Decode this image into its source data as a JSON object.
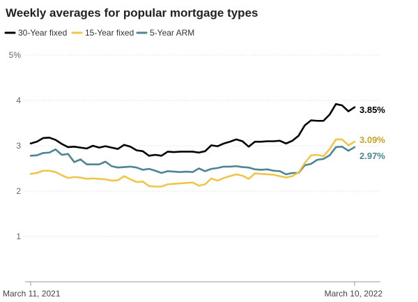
{
  "chart_data": {
    "type": "line",
    "title": "Weekly averages for popular mortgage types",
    "xlabel": "",
    "ylabel": "",
    "ylim": [
      0,
      5
    ],
    "yticks": [
      {
        "value": 1,
        "label": "1"
      },
      {
        "value": 2,
        "label": "2"
      },
      {
        "value": 3,
        "label": "3"
      },
      {
        "value": 4,
        "label": "4"
      },
      {
        "value": 5,
        "label": "5%"
      }
    ],
    "x_tick_labels": {
      "start": "March 11, 2021",
      "end": "March 10, 2022"
    },
    "legend_position": "top-left",
    "grid": true,
    "series": [
      {
        "name": "30-Year fixed",
        "color": "#000000",
        "end_label": "3.85%",
        "values": [
          3.05,
          3.09,
          3.17,
          3.18,
          3.13,
          3.04,
          2.97,
          2.98,
          2.96,
          2.94,
          3.0,
          2.96,
          2.99,
          2.96,
          2.93,
          3.02,
          2.98,
          2.9,
          2.88,
          2.78,
          2.8,
          2.78,
          2.87,
          2.86,
          2.87,
          2.87,
          2.87,
          2.85,
          2.88,
          3.01,
          2.99,
          3.05,
          3.09,
          3.14,
          3.1,
          2.98,
          3.09,
          3.09,
          3.1,
          3.1,
          3.11,
          3.05,
          3.11,
          3.22,
          3.45,
          3.56,
          3.55,
          3.55,
          3.69,
          3.92,
          3.89,
          3.76,
          3.85
        ]
      },
      {
        "name": "15-Year fixed",
        "color": "#f0c64a",
        "end_label": "3.09%",
        "values": [
          2.38,
          2.4,
          2.45,
          2.45,
          2.42,
          2.35,
          2.29,
          2.31,
          2.3,
          2.27,
          2.28,
          2.27,
          2.26,
          2.23,
          2.24,
          2.33,
          2.26,
          2.2,
          2.21,
          2.11,
          2.1,
          2.1,
          2.15,
          2.16,
          2.17,
          2.18,
          2.19,
          2.12,
          2.15,
          2.28,
          2.23,
          2.29,
          2.33,
          2.37,
          2.34,
          2.27,
          2.39,
          2.38,
          2.37,
          2.36,
          2.33,
          2.3,
          2.33,
          2.41,
          2.62,
          2.79,
          2.8,
          2.77,
          2.93,
          3.14,
          3.14,
          3.01,
          3.09
        ]
      },
      {
        "name": "5-Year ARM",
        "color": "#4d8595",
        "end_label": "2.97%",
        "values": [
          2.78,
          2.79,
          2.84,
          2.85,
          2.92,
          2.8,
          2.82,
          2.64,
          2.7,
          2.59,
          2.59,
          2.59,
          2.65,
          2.55,
          2.52,
          2.53,
          2.54,
          2.52,
          2.47,
          2.49,
          2.45,
          2.4,
          2.44,
          2.43,
          2.42,
          2.43,
          2.42,
          2.5,
          2.44,
          2.49,
          2.51,
          2.54,
          2.54,
          2.55,
          2.53,
          2.52,
          2.48,
          2.47,
          2.48,
          2.45,
          2.44,
          2.37,
          2.4,
          2.4,
          2.57,
          2.6,
          2.69,
          2.71,
          2.79,
          2.97,
          2.98,
          2.89,
          2.97
        ]
      }
    ]
  }
}
